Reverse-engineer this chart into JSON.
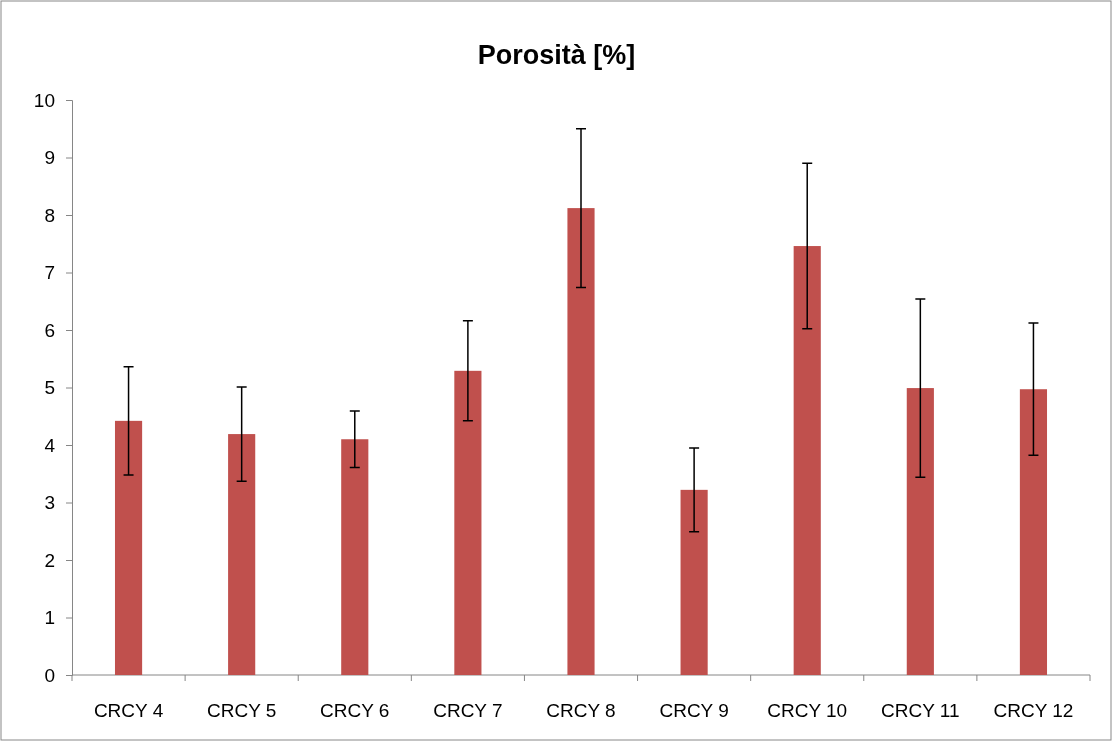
{
  "chart_data": {
    "type": "bar",
    "title": "Porosità [%]",
    "categories": [
      "CRCY 4",
      "CRCY 5",
      "CRCY 6",
      "CRCY 7",
      "CRCY 8",
      "CRCY 9",
      "CRCY 10",
      "CRCY 11",
      "CRCY 12"
    ],
    "values": [
      4.42,
      4.19,
      4.1,
      5.29,
      8.12,
      3.22,
      7.46,
      4.99,
      4.97
    ],
    "errors": [
      0.94,
      0.82,
      0.49,
      0.87,
      1.38,
      0.73,
      1.44,
      1.55,
      1.15
    ],
    "color": "#c0504d",
    "ylim": [
      0,
      10
    ],
    "yticks": [
      0,
      1,
      2,
      3,
      4,
      5,
      6,
      7,
      8,
      9,
      10
    ],
    "grid": false
  }
}
